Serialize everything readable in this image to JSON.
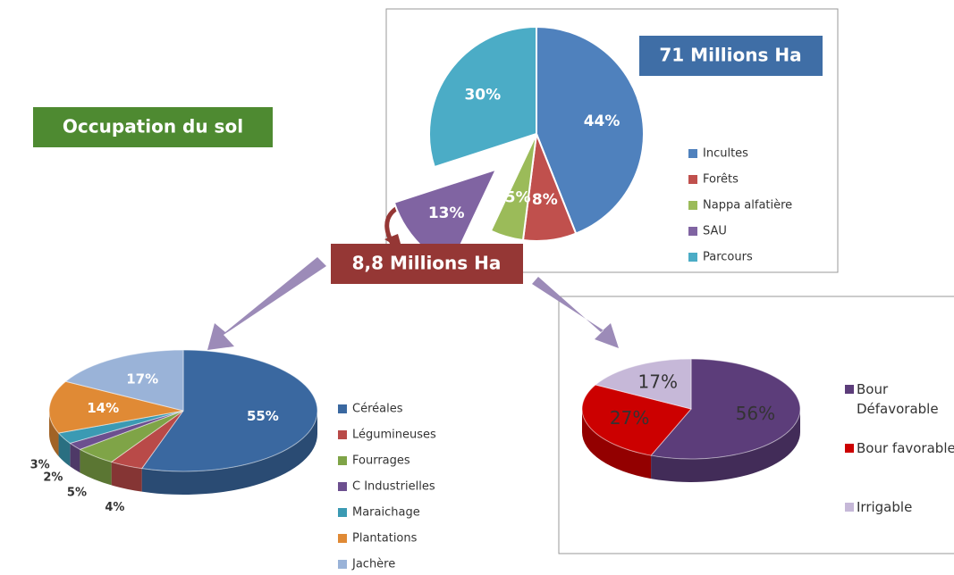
{
  "title": "Occupation du sol",
  "subtitle": "8,8 Millions Ha",
  "chart_data": [
    {
      "type": "pie",
      "title": "71 Millions Ha",
      "categories": [
        "Incultes",
        "Forêts",
        "Nappa alfatière",
        "SAU",
        "Parcours"
      ],
      "values": [
        44,
        8,
        5,
        13,
        30
      ],
      "value_labels": [
        "44%",
        "8%",
        "5%",
        "13%",
        "30%"
      ],
      "colors": [
        "#4f81bd",
        "#c0504d",
        "#9bbb59",
        "#8064a2",
        "#4bacc6"
      ],
      "exploded_slice": "SAU"
    },
    {
      "type": "pie3d",
      "categories": [
        "Céréales",
        "Légumineuses",
        "Fourrages",
        "C Industrielles",
        "Maraichage",
        "Plantations",
        "Jachère"
      ],
      "values": [
        55,
        4,
        5,
        2,
        3,
        14,
        17
      ],
      "value_labels": [
        "55%",
        "4%",
        "5%",
        "2%",
        "3%",
        "14%",
        "17%"
      ],
      "colors": [
        "#3a68a0",
        "#b94a48",
        "#7fa447",
        "#6c4f8f",
        "#3b9ab3",
        "#e08a35",
        "#9ab3d8"
      ]
    },
    {
      "type": "pie3d",
      "categories": [
        "Bour Défavorable",
        "Bour favorable",
        "Irrigable"
      ],
      "values": [
        56,
        27,
        17
      ],
      "value_labels": [
        "56%",
        "27%",
        "17%"
      ],
      "colors": [
        "#5c3d7a",
        "#cc0000",
        "#c6b8d8"
      ]
    }
  ]
}
